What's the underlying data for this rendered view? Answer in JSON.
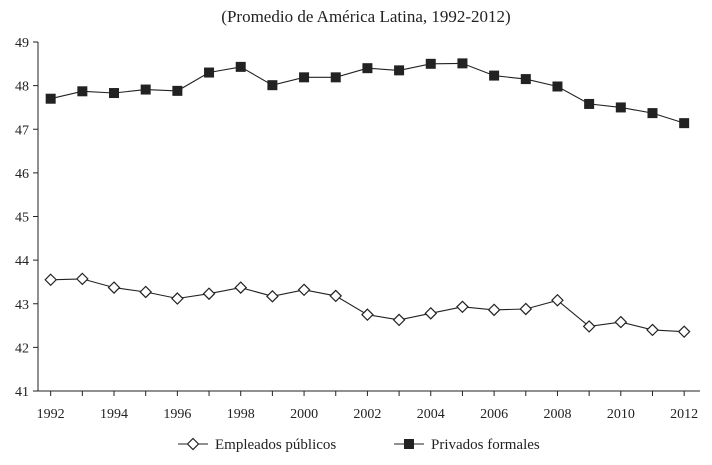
{
  "chart_data": {
    "type": "line",
    "title": "(Promedio de América Latina, 1992-2012)",
    "xlabel": "",
    "ylabel": "",
    "x": [
      1992,
      1993,
      1994,
      1995,
      1996,
      1997,
      1998,
      1999,
      2000,
      2001,
      2002,
      2003,
      2004,
      2005,
      2006,
      2007,
      2008,
      2009,
      2010,
      2011,
      2012
    ],
    "xticks": [
      "1992",
      "1994",
      "1996",
      "1998",
      "2000",
      "2002",
      "2004",
      "2006",
      "2008",
      "2010",
      "2012"
    ],
    "yticks": [
      "41",
      "42",
      "43",
      "44",
      "45",
      "46",
      "47",
      "48",
      "49"
    ],
    "xlim": [
      1991.6,
      2012.5
    ],
    "ylim": [
      41,
      49
    ],
    "grid": false,
    "legend_position": "bottom",
    "series": [
      {
        "name": "Empleados públicos",
        "marker": "diamond-open",
        "color": "#222222",
        "values": [
          43.55,
          43.57,
          43.37,
          43.27,
          43.12,
          43.23,
          43.37,
          43.17,
          43.32,
          43.18,
          42.75,
          42.63,
          42.78,
          42.93,
          42.86,
          42.88,
          43.08,
          42.48,
          42.58,
          42.4,
          42.36
        ]
      },
      {
        "name": "Privados formales",
        "marker": "square-filled",
        "color": "#222222",
        "values": [
          47.7,
          47.87,
          47.83,
          47.91,
          47.88,
          48.3,
          48.43,
          48.01,
          48.19,
          48.19,
          48.4,
          48.35,
          48.5,
          48.51,
          48.23,
          48.15,
          47.98,
          47.58,
          47.5,
          47.37,
          47.14
        ]
      }
    ]
  }
}
